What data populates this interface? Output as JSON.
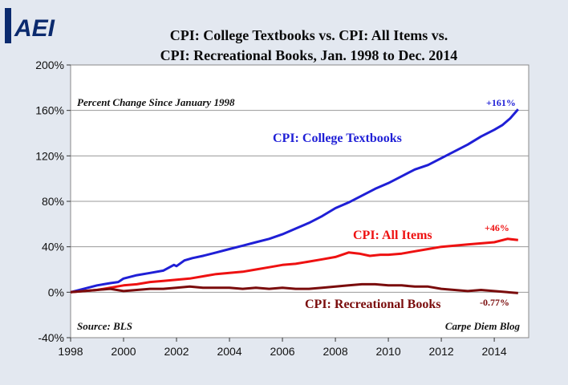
{
  "logo": {
    "text": "AEI"
  },
  "chart_data": {
    "type": "line",
    "title_lines": [
      "CPI: College Textbooks vs. CPI: All Items vs.",
      "CPI: Recreational Books, Jan. 1998 to Dec. 2014"
    ],
    "subtitle": "Percent Change Since January 1998",
    "source": "Source: BLS",
    "credit": "Carpe Diem Blog",
    "xlim": [
      1998,
      2015.3
    ],
    "ylim": [
      -40,
      200
    ],
    "x_ticks": [
      1998,
      2000,
      2002,
      2004,
      2006,
      2008,
      2010,
      2012,
      2014
    ],
    "x_tick_labels": [
      "1998",
      "2000",
      "2002",
      "2004",
      "2006",
      "2008",
      "2010",
      "2012",
      "2014"
    ],
    "y_ticks": [
      -40,
      0,
      40,
      80,
      120,
      160,
      200
    ],
    "y_tick_labels": [
      "-40%",
      "0%",
      "40%",
      "80%",
      "120%",
      "160%",
      "200%"
    ],
    "grid": "horizontal",
    "series": [
      {
        "name": "CPI: College Textbooks",
        "color": "#1f1fd6",
        "end_label": "+161%",
        "x": [
          1998.0,
          1998.5,
          1999.0,
          1999.5,
          1999.8,
          2000.0,
          2000.5,
          2001.0,
          2001.5,
          2001.9,
          2002.0,
          2002.3,
          2002.6,
          2003.0,
          2003.5,
          2004.0,
          2004.5,
          2005.0,
          2005.5,
          2006.0,
          2006.5,
          2007.0,
          2007.5,
          2008.0,
          2008.5,
          2009.0,
          2009.5,
          2010.0,
          2010.5,
          2011.0,
          2011.5,
          2012.0,
          2012.5,
          2013.0,
          2013.5,
          2014.0,
          2014.3,
          2014.6,
          2014.9
        ],
        "values": [
          0,
          3,
          6,
          8,
          9,
          12,
          15,
          17,
          19,
          24,
          23,
          28,
          30,
          32,
          35,
          38,
          41,
          44,
          47,
          51,
          56,
          61,
          67,
          74,
          79,
          85,
          91,
          96,
          102,
          108,
          112,
          118,
          124,
          130,
          137,
          143,
          147,
          153,
          161
        ]
      },
      {
        "name": "CPI: All Items",
        "color": "#ee1111",
        "end_label": "+46%",
        "x": [
          1998.0,
          1998.5,
          1999.0,
          1999.5,
          2000.0,
          2000.5,
          2001.0,
          2001.5,
          2002.0,
          2002.5,
          2003.0,
          2003.5,
          2004.0,
          2004.5,
          2005.0,
          2005.5,
          2006.0,
          2006.5,
          2007.0,
          2007.5,
          2008.0,
          2008.5,
          2008.9,
          2009.3,
          2009.7,
          2010.0,
          2010.5,
          2011.0,
          2011.5,
          2012.0,
          2012.5,
          2013.0,
          2013.5,
          2014.0,
          2014.5,
          2014.9
        ],
        "values": [
          0,
          1,
          2,
          4,
          6,
          7,
          9,
          10,
          11,
          12,
          14,
          16,
          17,
          18,
          20,
          22,
          24,
          25,
          27,
          29,
          31,
          35,
          34,
          32,
          33,
          33,
          34,
          36,
          38,
          40,
          41,
          42,
          43,
          44,
          47,
          46
        ]
      },
      {
        "name": "CPI: Recreational Books",
        "color": "#7a0c0c",
        "end_label": "-0.77%",
        "x": [
          1998.0,
          1998.5,
          1999.0,
          1999.5,
          2000.0,
          2000.5,
          2001.0,
          2001.5,
          2002.0,
          2002.5,
          2003.0,
          2003.5,
          2004.0,
          2004.5,
          2005.0,
          2005.5,
          2006.0,
          2006.5,
          2007.0,
          2007.5,
          2008.0,
          2008.5,
          2009.0,
          2009.5,
          2010.0,
          2010.5,
          2011.0,
          2011.5,
          2012.0,
          2012.5,
          2013.0,
          2013.5,
          2014.0,
          2014.5,
          2014.9
        ],
        "values": [
          0,
          1,
          2,
          3,
          1,
          2,
          3,
          3,
          4,
          5,
          4,
          4,
          4,
          3,
          4,
          3,
          4,
          3,
          3,
          4,
          5,
          6,
          7,
          7,
          6,
          6,
          5,
          5,
          3,
          2,
          1,
          2,
          1,
          0,
          -0.77
        ]
      }
    ]
  }
}
